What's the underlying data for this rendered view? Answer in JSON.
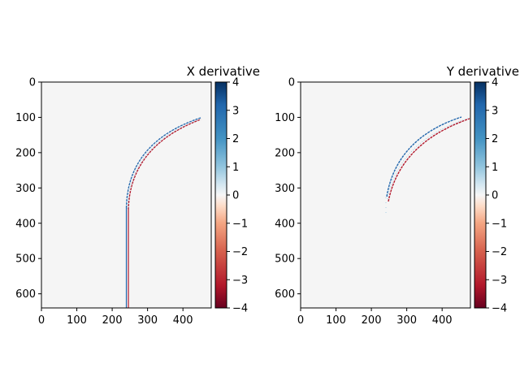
{
  "chart_data": [
    {
      "type": "heatmap",
      "title": "X derivative",
      "xlim": [
        0,
        480
      ],
      "ylim": [
        640,
        0
      ],
      "x_ticks": [
        0,
        100,
        200,
        300,
        400
      ],
      "y_ticks": [
        0,
        100,
        200,
        300,
        400,
        500,
        600
      ],
      "colorbar": {
        "colormap": "RdBu",
        "range": [
          -4,
          4
        ],
        "ticks": [
          4,
          3,
          2,
          1,
          0,
          -1,
          -2,
          -3,
          -4
        ]
      },
      "background_value": 0,
      "features": [
        {
          "kind": "vertical-edge-pair",
          "x_positive": 240,
          "x_negative": 246,
          "y_range": [
            355,
            640
          ]
        },
        {
          "kind": "arc-edge-pair",
          "center": [
            455,
            355
          ],
          "radius": 215,
          "y_range": [
            103,
            355
          ]
        }
      ]
    },
    {
      "type": "heatmap",
      "title": "Y derivative",
      "xlim": [
        0,
        480
      ],
      "ylim": [
        640,
        0
      ],
      "x_ticks": [
        0,
        100,
        200,
        300,
        400
      ],
      "y_ticks": [
        0,
        100,
        200,
        300,
        400,
        500,
        600
      ],
      "colorbar": {
        "colormap": "RdBu",
        "range": [
          -4,
          4
        ],
        "ticks": [
          4,
          3,
          2,
          1,
          0,
          -1,
          -2,
          -3,
          -4
        ]
      },
      "background_value": 0,
      "features": [
        {
          "kind": "arc-edge-pair",
          "center": [
            470,
            370
          ],
          "radius": 270,
          "y_range": [
            100,
            370
          ]
        }
      ]
    }
  ]
}
